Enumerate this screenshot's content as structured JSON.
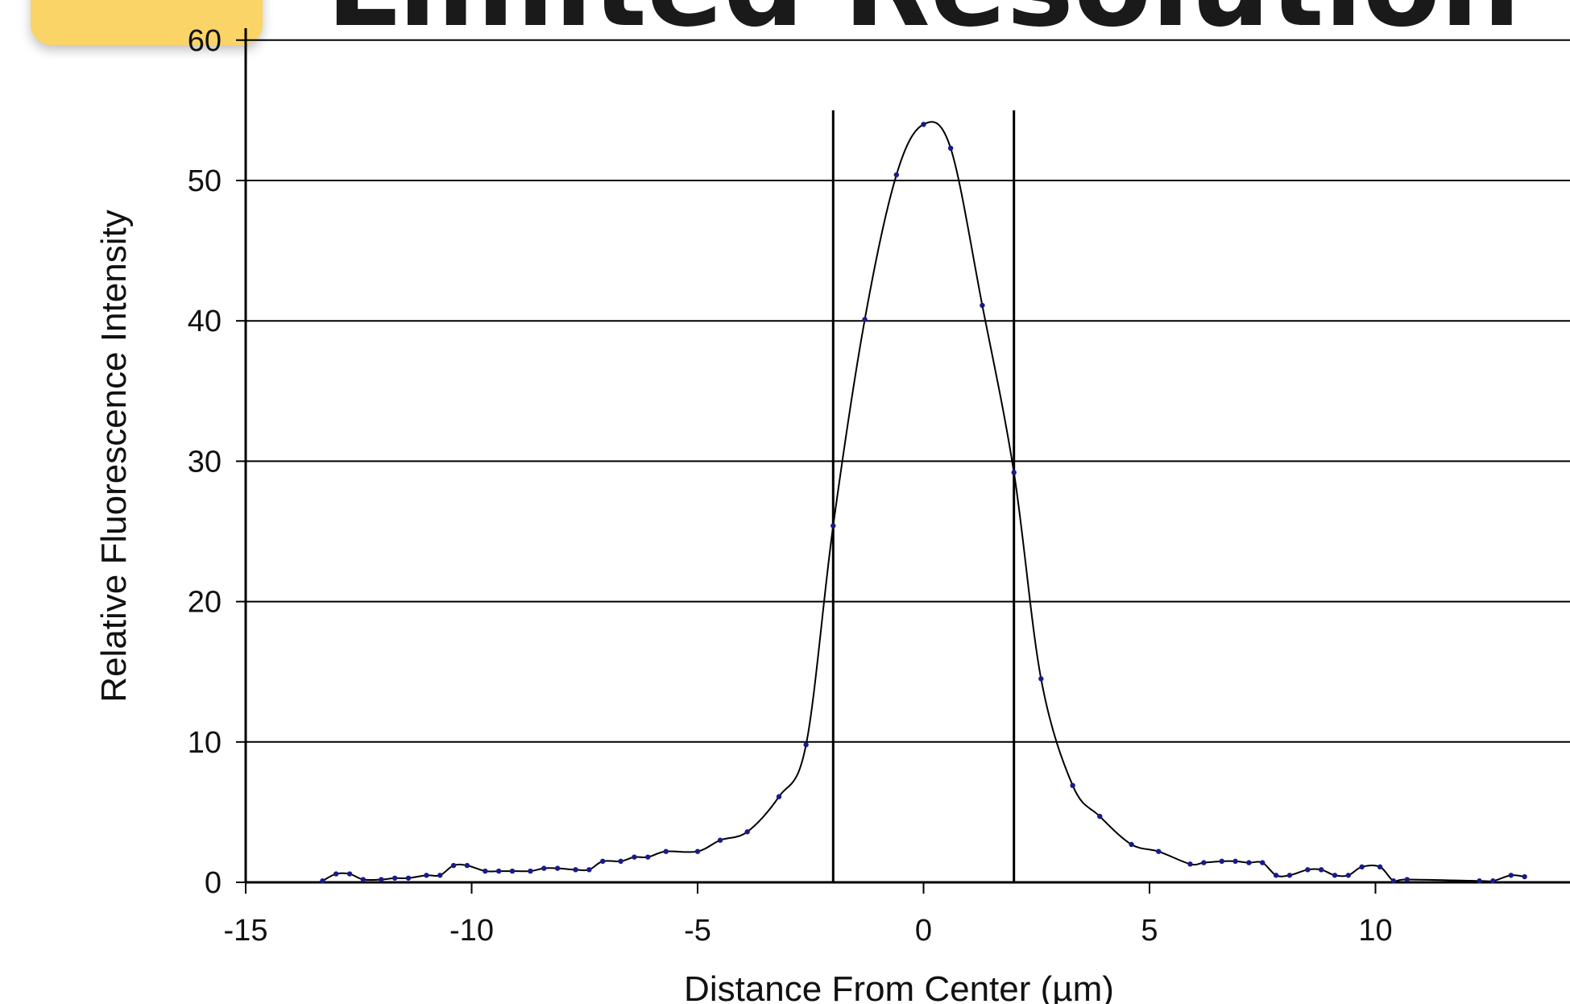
{
  "header": {
    "title": "Limited Resolution",
    "badge_color": "#FAD466"
  },
  "chart_data": {
    "type": "line",
    "title": "Limited Resolution",
    "xlabel": "Distance From Center (µm)",
    "ylabel": "Relative Fluorescence Intensity",
    "xlim": [
      -15,
      14.5
    ],
    "ylim": [
      0,
      60
    ],
    "x_ticks": [
      -15,
      -10,
      -5,
      0,
      5,
      10
    ],
    "y_ticks": [
      0,
      10,
      20,
      30,
      40,
      50,
      60
    ],
    "x_tick_labels": [
      "-15",
      "-10",
      "-5",
      "0",
      "5",
      "10"
    ],
    "y_tick_labels": [
      "0",
      "10",
      "20",
      "30",
      "40",
      "50",
      "60"
    ],
    "grid": "horizontal",
    "vertical_markers": [
      -2,
      2
    ],
    "line_color": "#000000",
    "marker_color": "#1a1a8c",
    "series": [
      {
        "x": [
          -13.3,
          -13.0,
          -12.7,
          -12.4,
          -12.0,
          -11.7,
          -11.4,
          -11.0,
          -10.7,
          -10.4,
          -10.1,
          -9.7,
          -9.4,
          -9.1,
          -8.7,
          -8.4,
          -8.1,
          -7.7,
          -7.4,
          -7.1,
          -6.7,
          -6.4,
          -6.1,
          -5.7,
          -5.0,
          -4.5,
          -3.9,
          -3.2,
          -2.6,
          -2.0,
          -1.3,
          -0.6,
          0.0,
          0.6,
          1.3,
          2.0,
          2.6,
          3.3,
          3.9,
          4.6,
          5.2,
          5.9,
          6.2,
          6.6,
          6.9,
          7.2,
          7.5,
          7.8,
          8.1,
          8.5,
          8.8,
          9.1,
          9.4,
          9.7,
          10.1,
          10.4,
          10.7,
          12.3,
          12.6,
          13.0,
          13.3
        ],
        "y": [
          0.1,
          0.6,
          0.6,
          0.2,
          0.2,
          0.3,
          0.3,
          0.5,
          0.5,
          1.2,
          1.2,
          0.8,
          0.8,
          0.8,
          0.8,
          1.0,
          1.0,
          0.9,
          0.9,
          1.5,
          1.5,
          1.8,
          1.8,
          2.2,
          2.2,
          3.0,
          3.6,
          6.1,
          9.8,
          25.4,
          40.1,
          50.4,
          54.0,
          52.3,
          41.1,
          29.2,
          14.5,
          6.9,
          4.7,
          2.7,
          2.2,
          1.3,
          1.4,
          1.5,
          1.5,
          1.4,
          1.4,
          0.5,
          0.5,
          0.9,
          0.9,
          0.5,
          0.5,
          1.1,
          1.1,
          0.1,
          0.2,
          0.1,
          0.1,
          0.5,
          0.4
        ]
      }
    ]
  }
}
